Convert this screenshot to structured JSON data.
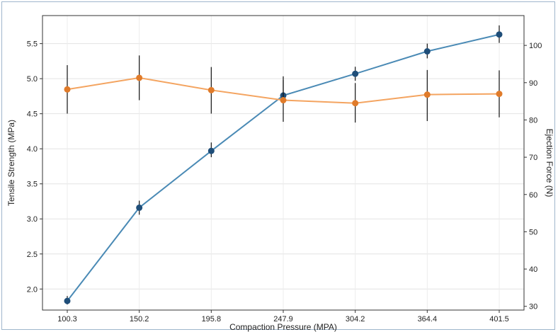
{
  "chart_data": {
    "type": "line",
    "title": "",
    "xlabel": "Compaction Pressure (MPA)",
    "ylabel": "Tensile Strength (MPa)",
    "y2label": "Ejection Force (N)",
    "categories": [
      "100.3",
      "150.2",
      "195.8",
      "247.9",
      "304.2",
      "364.4",
      "401.5"
    ],
    "x": [
      100.3,
      150.2,
      195.8,
      247.9,
      304.2,
      364.4,
      401.5
    ],
    "ylim": [
      1.7,
      5.9
    ],
    "y2lim": [
      29,
      108
    ],
    "yticks": [
      2.0,
      2.5,
      3.0,
      3.5,
      4.0,
      4.5,
      5.0,
      5.5
    ],
    "y2ticks": [
      30,
      40,
      50,
      60,
      70,
      80,
      90,
      100
    ],
    "grid": true,
    "legend": "none",
    "series": [
      {
        "axis": "left",
        "color": "#4a8ab5",
        "marker_color": "#1f4e79",
        "values": [
          1.83,
          3.16,
          3.97,
          4.76,
          5.07,
          5.39,
          5.63
        ],
        "err_low": [
          1.78,
          3.06,
          3.88,
          4.66,
          4.97,
          5.29,
          5.51
        ],
        "err_high": [
          1.9,
          3.26,
          4.09,
          4.98,
          5.17,
          5.5,
          5.76
        ]
      },
      {
        "axis": "right",
        "color": "#f4a460",
        "marker_color": "#e07b2a",
        "values": [
          88.2,
          91.3,
          88.0,
          85.3,
          84.5,
          86.8,
          87.0
        ],
        "err_low": [
          81.7,
          85.3,
          81.7,
          79.5,
          79.3,
          79.7,
          80.7
        ],
        "err_high": [
          94.7,
          97.3,
          94.2,
          91.7,
          89.9,
          93.4,
          93.3
        ]
      }
    ]
  }
}
